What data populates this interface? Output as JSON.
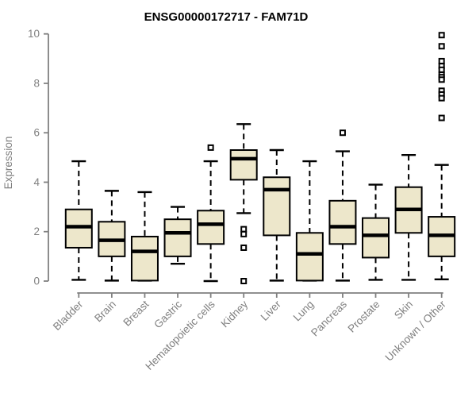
{
  "chart_data": {
    "type": "boxplot",
    "title": "ENSG00000172717 - FAM71D",
    "ylabel": "Expression",
    "xlabel": "",
    "ylim": [
      0,
      10
    ],
    "yticks": [
      0,
      2,
      4,
      6,
      8,
      10
    ],
    "grid": false,
    "legend_position": "none",
    "categories": [
      "Bladder",
      "Brain",
      "Breast",
      "Gastric",
      "Hematopoietic cells",
      "Kidney",
      "Liver",
      "Lung",
      "Pancreas",
      "Prostate",
      "Skin",
      "Unknown / Other"
    ],
    "series": [
      {
        "name": "Bladder",
        "low": 0.05,
        "q1": 1.35,
        "median": 2.2,
        "q3": 2.9,
        "high": 4.85,
        "outliers": []
      },
      {
        "name": "Brain",
        "low": 0.02,
        "q1": 1.0,
        "median": 1.65,
        "q3": 2.4,
        "high": 3.65,
        "outliers": []
      },
      {
        "name": "Breast",
        "low": 0.02,
        "q1": 0.02,
        "median": 1.2,
        "q3": 1.8,
        "high": 3.6,
        "outliers": []
      },
      {
        "name": "Gastric",
        "low": 0.7,
        "q1": 1.0,
        "median": 1.95,
        "q3": 2.5,
        "high": 3.0,
        "outliers": []
      },
      {
        "name": "Hematopoietic cells",
        "low": 0.0,
        "q1": 1.5,
        "median": 2.3,
        "q3": 2.85,
        "high": 4.85,
        "outliers": [
          5.4
        ]
      },
      {
        "name": "Kidney",
        "low": 2.75,
        "q1": 4.1,
        "median": 4.95,
        "q3": 5.3,
        "high": 6.35,
        "outliers": [
          2.1,
          1.9,
          1.35,
          0.0
        ]
      },
      {
        "name": "Liver",
        "low": 0.02,
        "q1": 1.85,
        "median": 3.7,
        "q3": 4.2,
        "high": 5.3,
        "outliers": []
      },
      {
        "name": "Lung",
        "low": 0.02,
        "q1": 0.02,
        "median": 1.1,
        "q3": 1.95,
        "high": 4.85,
        "outliers": []
      },
      {
        "name": "Pancreas",
        "low": 0.02,
        "q1": 1.5,
        "median": 2.2,
        "q3": 3.25,
        "high": 5.25,
        "outliers": [
          6.0
        ]
      },
      {
        "name": "Prostate",
        "low": 0.05,
        "q1": 0.95,
        "median": 1.85,
        "q3": 2.55,
        "high": 3.9,
        "outliers": []
      },
      {
        "name": "Skin",
        "low": 0.05,
        "q1": 1.95,
        "median": 2.9,
        "q3": 3.8,
        "high": 5.1,
        "outliers": []
      },
      {
        "name": "Unknown / Other",
        "low": 0.07,
        "q1": 1.0,
        "median": 1.85,
        "q3": 2.6,
        "high": 4.7,
        "outliers": [
          9.95,
          9.5,
          8.9,
          8.7,
          8.55,
          8.35,
          8.25,
          8.15,
          7.7,
          7.55,
          7.4,
          6.6
        ]
      }
    ],
    "style": {
      "background": "#ffffff",
      "box_fill": "#EDE7CB",
      "box_stroke": "#000000",
      "median_color": "#000000",
      "whisker_color": "#000000",
      "whisker_style": "dashed",
      "outlier_marker": "open-square",
      "outlier_fill": "#ffffff",
      "axis_color": "#808080",
      "tick_label_color": "#808080",
      "title_color": "#000000"
    }
  }
}
